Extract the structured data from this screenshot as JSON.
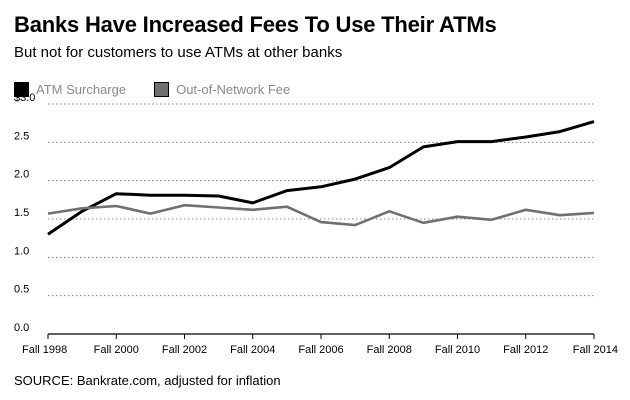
{
  "header": {
    "title": "Banks Have Increased Fees To Use Their ATMs",
    "subtitle": "But not for customers to use ATMs at other banks"
  },
  "legend": {
    "items": [
      {
        "label": "ATM Surcharge",
        "color": "#000000"
      },
      {
        "label": "Out-of-Network Fee",
        "color": "#707070"
      }
    ]
  },
  "footer": {
    "source": "SOURCE: Bankrate.com, adjusted for inflation"
  },
  "chart_data": {
    "type": "line",
    "title": "Banks Have Increased Fees To Use Their ATMs",
    "subtitle": "But not for customers to use ATMs at other banks",
    "xlabel": "",
    "ylabel": "",
    "x": [
      1998,
      1999,
      2000,
      2001,
      2002,
      2003,
      2004,
      2005,
      2006,
      2007,
      2008,
      2009,
      2010,
      2011,
      2012,
      2013,
      2014
    ],
    "xticks": [
      1998,
      2000,
      2002,
      2004,
      2006,
      2008,
      2010,
      2012,
      2014
    ],
    "xtick_labels": [
      "Fall 1998",
      "Fall 2000",
      "Fall 2002",
      "Fall 2004",
      "Fall 2006",
      "Fall 2008",
      "Fall 2010",
      "Fall 2012",
      "Fall 2014"
    ],
    "yticks": [
      0,
      0.5,
      1.0,
      1.5,
      2.0,
      2.5,
      3.0
    ],
    "ytick_labels": [
      "0.0",
      "0.5",
      "1.0",
      "1.5",
      "2.0",
      "2.5",
      "$3.0"
    ],
    "ylim": [
      0,
      3.0
    ],
    "grid": true,
    "series": [
      {
        "name": "ATM Surcharge",
        "color": "#000000",
        "values": [
          1.3,
          1.6,
          1.83,
          1.81,
          1.81,
          1.8,
          1.71,
          1.87,
          1.92,
          2.02,
          2.17,
          2.44,
          2.51,
          2.51,
          2.57,
          2.64,
          2.77
        ]
      },
      {
        "name": "Out-of-Network Fee",
        "color": "#707070",
        "values": [
          1.57,
          1.64,
          1.67,
          1.57,
          1.68,
          1.65,
          1.62,
          1.66,
          1.46,
          1.42,
          1.6,
          1.45,
          1.53,
          1.49,
          1.62,
          1.55,
          1.58
        ]
      }
    ]
  }
}
